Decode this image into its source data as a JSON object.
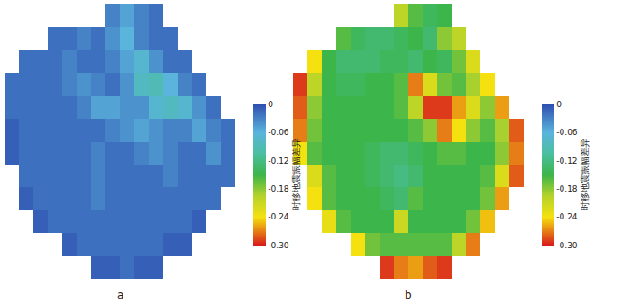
{
  "chart_data": [
    {
      "type": "heatmap",
      "annotations": [
        "a"
      ],
      "tick_labels": false,
      "colorbar": {
        "title": "时移地震振幅差异",
        "range": [
          -0.3,
          0
        ],
        "ticks": [
          0,
          -0.06,
          -0.12,
          -0.18,
          -0.24,
          {
            "value": -0.3,
            "label": "-0.30"
          }
        ]
      },
      "cells": [
        [
          null,
          null,
          null,
          null,
          null,
          null,
          null,
          -0.03,
          -0.05,
          -0.03,
          -0.02,
          null,
          null,
          null,
          null,
          null
        ],
        [
          null,
          null,
          null,
          -0.02,
          -0.02,
          -0.03,
          -0.02,
          -0.04,
          -0.06,
          -0.03,
          -0.02,
          -0.02,
          null,
          null,
          null,
          null
        ],
        [
          null,
          -0.02,
          -0.02,
          -0.02,
          -0.03,
          -0.02,
          -0.02,
          -0.03,
          -0.05,
          -0.07,
          -0.04,
          -0.02,
          -0.02,
          null,
          null,
          null
        ],
        [
          -0.02,
          -0.02,
          -0.02,
          -0.02,
          -0.03,
          -0.04,
          -0.03,
          -0.02,
          -0.04,
          -0.08,
          -0.09,
          -0.06,
          -0.03,
          -0.02,
          null,
          null
        ],
        [
          -0.02,
          -0.02,
          -0.02,
          -0.02,
          -0.02,
          -0.03,
          -0.05,
          -0.05,
          -0.04,
          -0.04,
          -0.07,
          -0.08,
          -0.07,
          -0.04,
          -0.02,
          null
        ],
        [
          -0.01,
          -0.02,
          -0.02,
          -0.02,
          -0.02,
          -0.02,
          -0.02,
          -0.03,
          -0.04,
          -0.05,
          -0.04,
          -0.03,
          -0.03,
          -0.05,
          -0.03,
          -0.02
        ],
        [
          -0.01,
          -0.02,
          -0.02,
          -0.02,
          -0.02,
          -0.02,
          -0.03,
          -0.02,
          -0.02,
          -0.03,
          -0.04,
          -0.03,
          -0.02,
          -0.02,
          -0.04,
          -0.02
        ],
        [
          null,
          -0.02,
          -0.02,
          -0.02,
          -0.02,
          -0.02,
          -0.03,
          -0.02,
          -0.02,
          -0.02,
          -0.02,
          -0.03,
          -0.02,
          -0.02,
          -0.02,
          -0.02
        ],
        [
          null,
          -0.01,
          -0.02,
          -0.02,
          -0.02,
          -0.02,
          -0.03,
          -0.02,
          -0.02,
          -0.02,
          -0.02,
          -0.02,
          -0.02,
          -0.02,
          -0.02,
          null
        ],
        [
          null,
          null,
          -0.01,
          -0.02,
          -0.02,
          -0.02,
          -0.02,
          -0.02,
          -0.02,
          -0.02,
          -0.02,
          -0.02,
          -0.02,
          -0.01,
          null,
          null
        ],
        [
          null,
          null,
          null,
          null,
          -0.01,
          -0.02,
          -0.02,
          -0.02,
          -0.02,
          -0.02,
          -0.02,
          -0.01,
          -0.01,
          null,
          null,
          null
        ],
        [
          null,
          null,
          null,
          null,
          null,
          null,
          -0.01,
          -0.01,
          -0.02,
          -0.01,
          -0.01,
          null,
          null,
          null,
          null,
          null
        ]
      ]
    },
    {
      "type": "heatmap",
      "annotations": [
        "b"
      ],
      "tick_labels": false,
      "colorbar": {
        "title": "时移地震振幅差异",
        "range": [
          -0.3,
          0
        ],
        "ticks": [
          0,
          -0.06,
          -0.12,
          -0.18,
          -0.24,
          {
            "value": -0.3,
            "label": "-0.30"
          }
        ]
      },
      "cells": [
        [
          null,
          null,
          null,
          null,
          null,
          null,
          null,
          -0.2,
          -0.16,
          -0.14,
          -0.15,
          null,
          null,
          null,
          null,
          null
        ],
        [
          null,
          null,
          null,
          -0.16,
          -0.14,
          -0.13,
          -0.13,
          -0.14,
          -0.15,
          -0.13,
          -0.18,
          -0.2,
          null,
          null,
          null,
          null
        ],
        [
          null,
          -0.24,
          -0.15,
          -0.13,
          -0.13,
          -0.13,
          -0.14,
          -0.14,
          -0.13,
          -0.15,
          -0.14,
          -0.17,
          -0.22,
          null,
          null,
          null
        ],
        [
          -0.29,
          -0.2,
          -0.15,
          -0.14,
          -0.14,
          -0.15,
          -0.15,
          -0.16,
          -0.27,
          -0.22,
          -0.17,
          -0.16,
          -0.19,
          -0.24,
          null,
          null
        ],
        [
          -0.28,
          -0.18,
          -0.15,
          -0.15,
          -0.15,
          -0.15,
          -0.15,
          -0.16,
          -0.2,
          -0.29,
          -0.29,
          -0.26,
          -0.22,
          -0.18,
          -0.26,
          null
        ],
        [
          -0.27,
          -0.17,
          -0.15,
          -0.15,
          -0.15,
          -0.15,
          -0.15,
          -0.15,
          -0.16,
          -0.18,
          -0.27,
          -0.24,
          -0.18,
          -0.16,
          -0.19,
          -0.28
        ],
        [
          -0.24,
          -0.16,
          -0.15,
          -0.15,
          -0.15,
          -0.14,
          -0.13,
          -0.13,
          -0.14,
          -0.15,
          -0.16,
          -0.16,
          -0.15,
          -0.15,
          -0.18,
          -0.27
        ],
        [
          null,
          -0.22,
          -0.16,
          -0.15,
          -0.15,
          -0.14,
          -0.13,
          -0.12,
          -0.13,
          -0.15,
          -0.15,
          -0.15,
          -0.15,
          -0.16,
          -0.22,
          -0.28
        ],
        [
          null,
          -0.24,
          -0.16,
          -0.15,
          -0.15,
          -0.15,
          -0.14,
          -0.13,
          -0.16,
          -0.15,
          -0.15,
          -0.15,
          -0.15,
          -0.17,
          -0.26,
          null
        ],
        [
          null,
          null,
          -0.23,
          -0.16,
          -0.15,
          -0.15,
          -0.15,
          -0.21,
          -0.15,
          -0.15,
          -0.15,
          -0.15,
          -0.17,
          -0.25,
          null,
          null
        ],
        [
          null,
          null,
          null,
          null,
          -0.24,
          -0.17,
          -0.16,
          -0.16,
          -0.16,
          -0.16,
          -0.16,
          -0.2,
          -0.27,
          null,
          null,
          null
        ],
        [
          null,
          null,
          null,
          null,
          null,
          null,
          -0.29,
          -0.27,
          -0.26,
          -0.28,
          -0.29,
          null,
          null,
          null,
          null,
          null
        ]
      ]
    }
  ]
}
